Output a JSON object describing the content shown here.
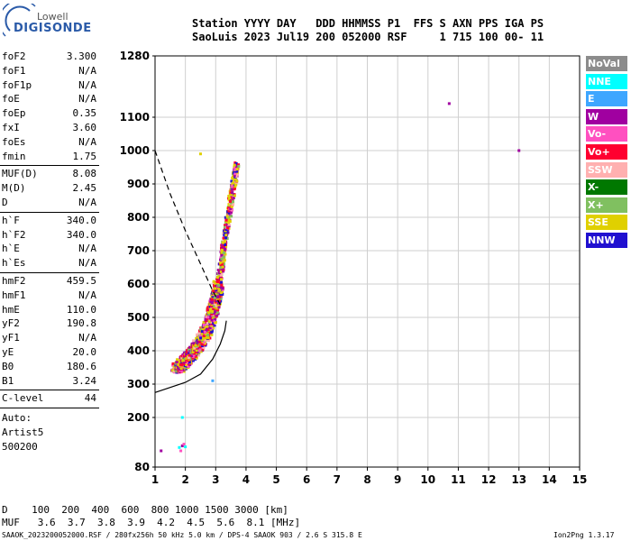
{
  "logo": {
    "top": "Lowell",
    "main": "DIGISONDE"
  },
  "header": {
    "labels": "Station YYYY DAY   DDD HHMMSS P1  FFS S AXN PPS IGA PS",
    "values": "SaoLuis 2023 Jul19 200 052000 RSF     1 715 100 00- 11"
  },
  "params_group1": [
    {
      "name": "foF2",
      "value": "3.300"
    },
    {
      "name": "foF1",
      "value": "N/A"
    },
    {
      "name": "foF1p",
      "value": "N/A"
    },
    {
      "name": "foE",
      "value": "N/A"
    },
    {
      "name": "foEp",
      "value": "0.35"
    },
    {
      "name": "fxI",
      "value": "3.60"
    },
    {
      "name": "foEs",
      "value": "N/A"
    },
    {
      "name": "fmin",
      "value": "1.75"
    }
  ],
  "params_group2": [
    {
      "name": "MUF(D)",
      "value": "8.08"
    },
    {
      "name": "M(D)",
      "value": "2.45"
    },
    {
      "name": "D",
      "value": "N/A"
    }
  ],
  "params_group3": [
    {
      "name": "h`F",
      "value": "340.0"
    },
    {
      "name": "h`F2",
      "value": "340.0"
    },
    {
      "name": "h`E",
      "value": "N/A"
    },
    {
      "name": "h`Es",
      "value": "N/A"
    }
  ],
  "params_group4": [
    {
      "name": "hmF2",
      "value": "459.5"
    },
    {
      "name": "hmF1",
      "value": "N/A"
    },
    {
      "name": "hmE",
      "value": "110.0"
    },
    {
      "name": "yF2",
      "value": "190.8"
    },
    {
      "name": "yF1",
      "value": "N/A"
    },
    {
      "name": "yE",
      "value": "20.0"
    },
    {
      "name": "B0",
      "value": "180.6"
    },
    {
      "name": "B1",
      "value": "3.24"
    }
  ],
  "params_group5": [
    {
      "name": "C-level",
      "value": "44"
    }
  ],
  "auto": {
    "label": "Auto:",
    "artist": "Artist5",
    "version": "500200"
  },
  "legend": [
    {
      "label": "NoVal",
      "color": "#8c8c8c"
    },
    {
      "label": "NNE",
      "color": "#00ffff"
    },
    {
      "label": "E",
      "color": "#3ea6ff"
    },
    {
      "label": "W",
      "color": "#a000a0"
    },
    {
      "label": "Vo-",
      "color": "#ff50c0"
    },
    {
      "label": "Vo+",
      "color": "#ff0030"
    },
    {
      "label": "SSW",
      "color": "#ffb0b0"
    },
    {
      "label": "X-",
      "color": "#007800"
    },
    {
      "label": "X+",
      "color": "#80c060"
    },
    {
      "label": "SSE",
      "color": "#e0d000"
    },
    {
      "label": "NNW",
      "color": "#2010d0"
    }
  ],
  "bottom": {
    "d_row": "D    100  200  400  600  800 1000 1500 3000 [km]",
    "muf_row": "MUF   3.6  3.7  3.8  3.9  4.2  4.5  5.6  8.1 [MHz]",
    "footer_left": "SAAOK_2023200052000.RSF / 280fx256h 50 kHz 5.0 km / DPS-4 SAAOK 903 / 2.6 S 315.8 E",
    "footer_right": "Ion2Png 1.3.17"
  },
  "chart_data": {
    "type": "scatter",
    "xlabel": "",
    "ylabel": "",
    "xlim": [
      1,
      15
    ],
    "xticks": [
      "1",
      "2",
      "3",
      "4",
      "5",
      "6",
      "7",
      "8",
      "9",
      "10",
      "11",
      "12",
      "13",
      "14",
      "15"
    ],
    "ylim": [
      80,
      1280
    ],
    "yticks": [
      {
        "value": 80,
        "label": "80"
      },
      {
        "value": 200,
        "label": "200"
      },
      {
        "value": 300,
        "label": "300"
      },
      {
        "value": 400,
        "label": "400"
      },
      {
        "value": 500,
        "label": "500"
      },
      {
        "value": 600,
        "label": "600"
      },
      {
        "value": 700,
        "label": "700"
      },
      {
        "value": 800,
        "label": "800"
      },
      {
        "value": 900,
        "label": "900"
      },
      {
        "value": 1000,
        "label": "1000"
      },
      {
        "value": 1100,
        "label": "1100"
      },
      {
        "value": 1280,
        "label": "1280"
      }
    ],
    "grid": true,
    "profile_solid": [
      [
        1,
        275
      ],
      [
        1.5,
        290
      ],
      [
        2,
        305
      ],
      [
        2.5,
        330
      ],
      [
        2.9,
        375
      ],
      [
        3.15,
        420
      ],
      [
        3.3,
        460
      ],
      [
        3.35,
        490
      ]
    ],
    "profile_dashed": [
      [
        1,
        1000
      ],
      [
        1.5,
        870
      ],
      [
        2,
        760
      ],
      [
        2.5,
        660
      ],
      [
        2.9,
        580
      ],
      [
        3.2,
        530
      ]
    ],
    "echo_trace_centerline": [
      [
        1.7,
        345
      ],
      [
        1.9,
        360
      ],
      [
        2.1,
        380
      ],
      [
        2.3,
        400
      ],
      [
        2.5,
        425
      ],
      [
        2.7,
        460
      ],
      [
        2.85,
        500
      ],
      [
        3,
        550
      ],
      [
        3.1,
        600
      ],
      [
        3.2,
        660
      ],
      [
        3.3,
        730
      ],
      [
        3.45,
        820
      ],
      [
        3.6,
        900
      ],
      [
        3.7,
        960
      ]
    ],
    "isolated_points": [
      {
        "x": 10.7,
        "y": 1140,
        "color": "#a000a0"
      },
      {
        "x": 13.0,
        "y": 1000,
        "color": "#a000a0"
      },
      {
        "x": 2.5,
        "y": 990,
        "color": "#e0d000"
      },
      {
        "x": 2.9,
        "y": 310,
        "color": "#3ea6ff"
      },
      {
        "x": 1.9,
        "y": 200,
        "color": "#00ffff"
      }
    ],
    "low_cluster": [
      [
        1.8,
        110
      ],
      [
        1.9,
        115
      ],
      [
        2.0,
        112
      ],
      [
        1.95,
        120
      ],
      [
        1.85,
        100
      ],
      [
        1.2,
        100
      ]
    ]
  }
}
